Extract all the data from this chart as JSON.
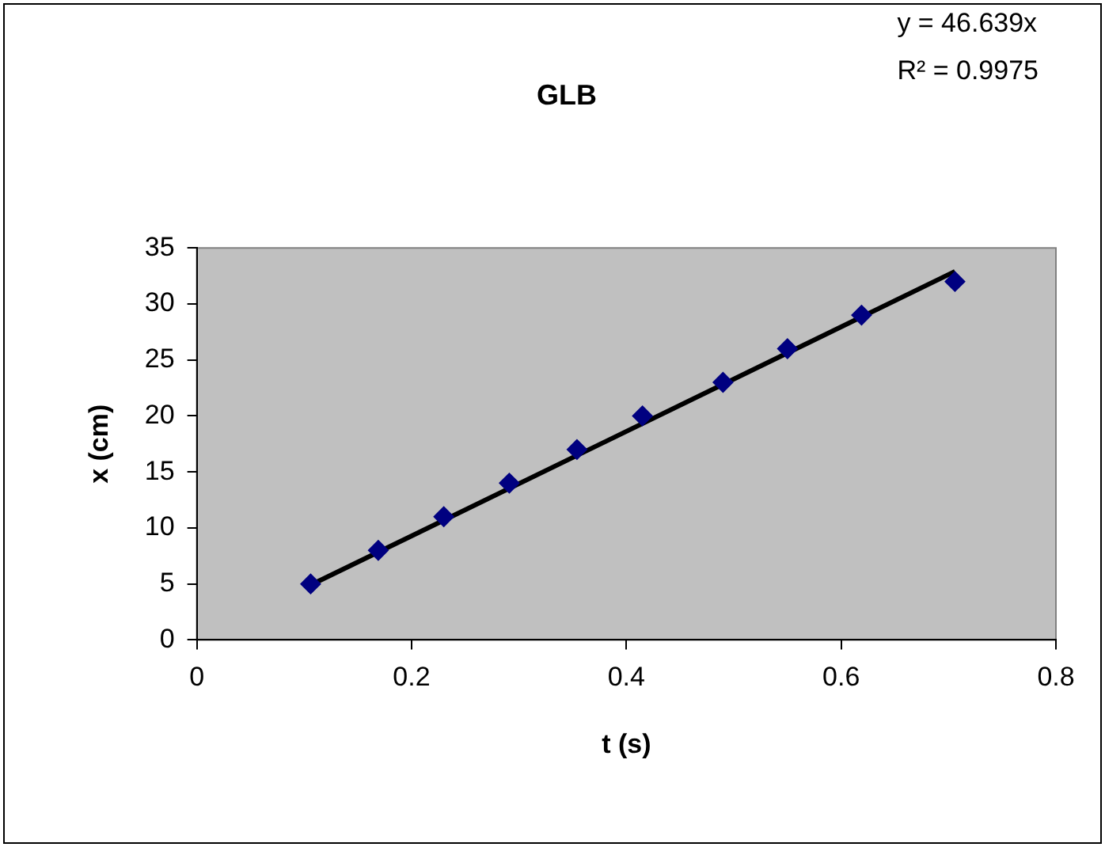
{
  "chart_data": {
    "type": "scatter",
    "title": "GLB",
    "xlabel": "t (s)",
    "ylabel": "x (cm)",
    "annotations": [
      "y = 46.639x",
      "R² = 0.9975"
    ],
    "x": [
      0.106,
      0.169,
      0.23,
      0.291,
      0.354,
      0.415,
      0.49,
      0.55,
      0.619,
      0.706
    ],
    "series": [
      {
        "color": "#000080",
        "values": [
          5,
          8,
          11,
          14,
          17,
          20,
          23,
          26,
          29,
          32
        ],
        "marker": "diamond"
      },
      {
        "type": "line",
        "color": "#000000",
        "x": [
          0.106,
          0.706
        ],
        "values": [
          4.9,
          32.9
        ],
        "marker": "none",
        "line_style": "solid"
      }
    ],
    "xlim": [
      0,
      0.8
    ],
    "xticks": [
      0,
      0.2,
      0.4,
      0.6,
      0.8
    ],
    "ylim": [
      0,
      35
    ],
    "yticks": [
      0,
      5,
      10,
      15,
      20,
      25,
      30,
      35
    ],
    "grid": false,
    "legend": false
  }
}
